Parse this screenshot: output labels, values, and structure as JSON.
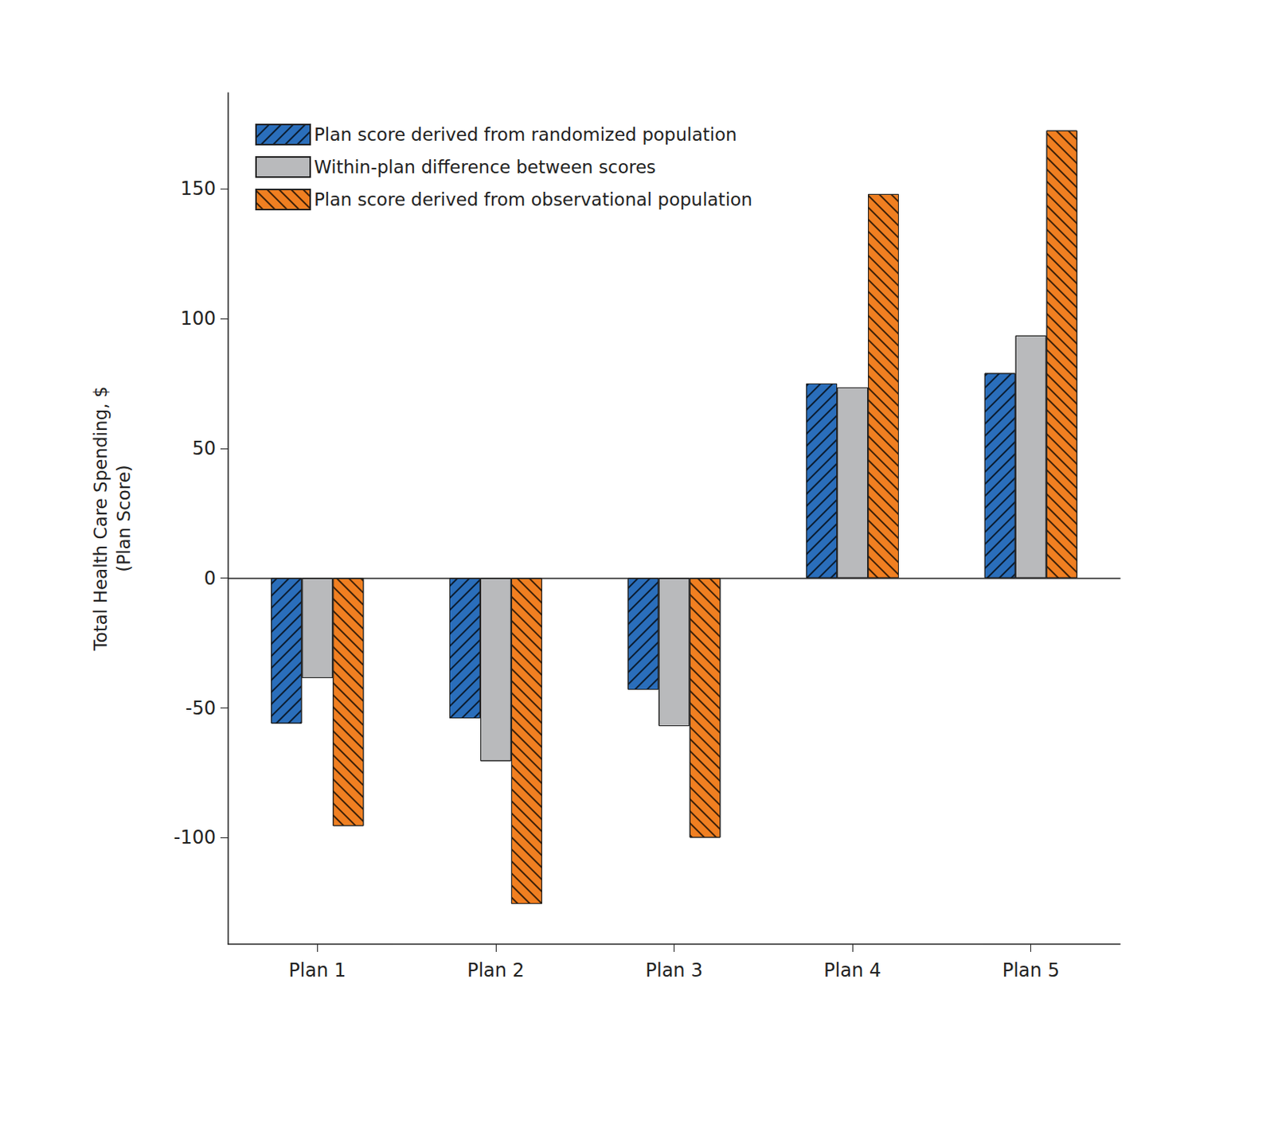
{
  "chart_data": {
    "type": "bar",
    "y_label": "Total Health Care Spending, $\n(Plan Score)",
    "categories": [
      "Plan 1",
      "Plan 2",
      "Plan 3",
      "Plan 4",
      "Plan 5"
    ],
    "series": [
      {
        "name": "Plan score derived from randomized population",
        "color": "#2a6ebb",
        "values": [
          -56,
          -54,
          -43,
          75,
          79
        ]
      },
      {
        "name": "Within-plan difference between scores",
        "color": "#b9babc",
        "values": [
          -38.5,
          -70.5,
          -57,
          73.5,
          93.5
        ]
      },
      {
        "name": "Plan score derived from observational population",
        "color": "#f07f21",
        "values": [
          -95.5,
          -125.5,
          -100,
          148,
          172.5
        ]
      }
    ],
    "ylim": [
      -141,
      187
    ],
    "yticks": [
      -100,
      -50,
      0,
      50,
      100,
      150
    ],
    "grid": false,
    "legend": "upper left"
  }
}
